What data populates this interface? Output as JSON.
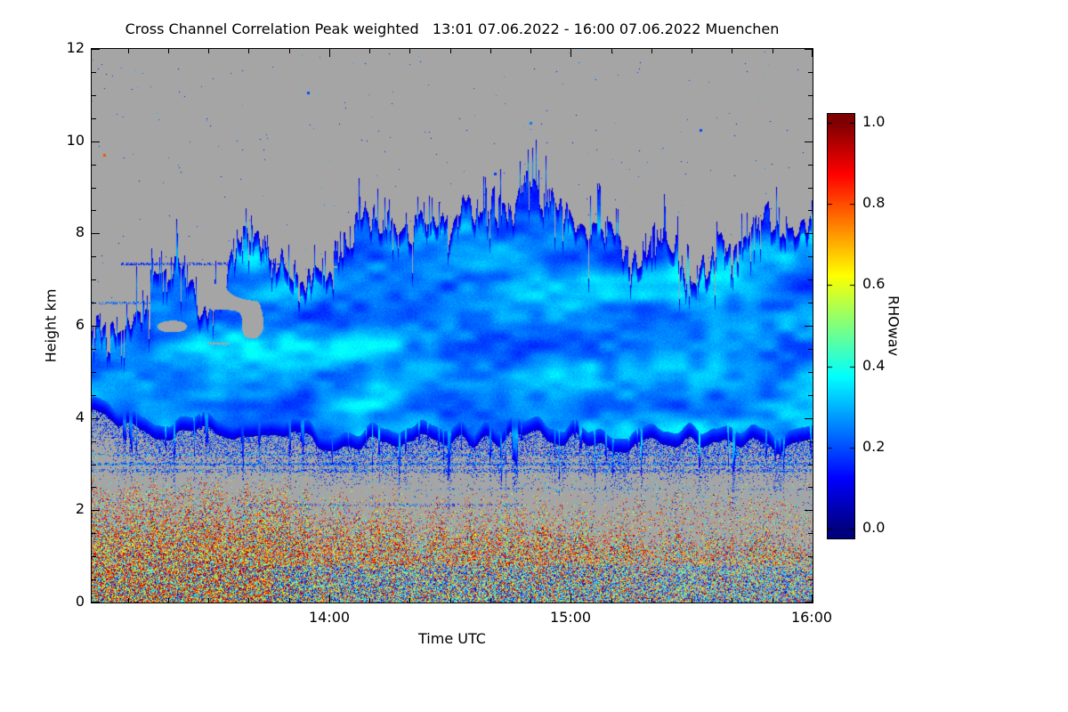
{
  "figure": {
    "title": "Cross Channel Correlation Peak weighted   13:01 07.06.2022 - 16:00 07.06.2022 Muenchen",
    "xlabel": "Time UTC",
    "ylabel": "Height km",
    "colorbar_label": "RHOwav"
  },
  "chart_data": {
    "type": "heatmap",
    "title": "Cross Channel Correlation Peak weighted 13:01 07.06.2022 - 16:00 07.06.2022 Muenchen",
    "xlabel": "Time UTC",
    "ylabel": "Height km",
    "x_start": "13:01",
    "x_end": "16:00",
    "x_start_min": 781,
    "x_end_min": 960,
    "x_ticks": [
      {
        "label": "14:00",
        "minutes": 840
      },
      {
        "label": "15:00",
        "minutes": 900
      },
      {
        "label": "16:00",
        "minutes": 960
      }
    ],
    "x_minor_step_min": 10,
    "y_min": 0,
    "y_max": 12,
    "y_ticks": [
      0,
      2,
      4,
      6,
      8,
      10,
      12
    ],
    "y_minor_step": 0.5,
    "value_name": "RHOwav",
    "value_range": [
      0,
      1
    ],
    "colormap": "jet",
    "no_data_color": "#a5a5a5",
    "colorbar_ticks": [
      {
        "label": "0.0",
        "value": 0.0
      },
      {
        "label": "0.2",
        "value": 0.2
      },
      {
        "label": "0.4",
        "value": 0.4
      },
      {
        "label": "0.6",
        "value": 0.6
      },
      {
        "label": "0.8",
        "value": 0.8
      },
      {
        "label": "1.0",
        "value": 1.0
      }
    ],
    "layers": {
      "cloud": {
        "description": "Extended cloud layer of low cross-channel correlation (blue, RHOwav ~0.05-0.35) with jagged top edge and ragged base, brighter cyan wisps inside, broken gray holes on the left third between 5.6 and 7.9 km",
        "top_km": [
          6.3,
          5.9,
          6.6,
          7.2,
          6.6,
          7.0,
          8.2,
          7.6,
          7.0,
          7.4,
          8.3,
          8.0,
          8.4,
          8.3,
          8.8,
          8.6,
          8.8,
          9.0,
          8.7,
          8.3,
          7.7,
          8.0,
          7.4,
          7.2,
          7.7,
          8.3,
          8.0,
          8.6
        ],
        "base_km": [
          4.2,
          3.9,
          3.75,
          3.6,
          3.7,
          3.6,
          3.55,
          3.6,
          3.5,
          3.45,
          3.5,
          3.55,
          3.5,
          3.4,
          3.45,
          3.5,
          3.55,
          3.6,
          3.5,
          3.4,
          3.35,
          3.4,
          3.45,
          3.5,
          3.4,
          3.35,
          3.4,
          3.45
        ],
        "value_range": [
          0.05,
          0.35
        ]
      },
      "boundary_layer": {
        "description": "Near-surface aerosol layer of high correlation speckle (red/orange/yellow, RHOwav ~0.5-1.0) mixed with cyan/green and gray gaps; densest and reddest on the left, more yellow-green near the ground toward the right",
        "top_km": [
          1.75,
          1.7,
          1.65,
          1.7,
          1.6,
          1.65,
          1.6,
          1.55,
          1.6,
          1.5,
          1.55,
          1.45,
          1.5,
          1.4,
          1.45,
          1.5,
          1.4,
          1.45,
          1.35,
          1.4,
          1.3,
          1.35,
          1.3,
          1.25,
          1.3,
          1.2,
          1.25,
          1.2
        ],
        "value_range": [
          0.3,
          1.0
        ]
      },
      "speckle_zone": {
        "description": "Sparse mixed-color speckle between boundary layer and cloud base (about 2-3.4 km)",
        "density": 0.05
      },
      "streaks": [
        {
          "h_km": 3.0,
          "t0": 0.0,
          "t1": 1.0,
          "density": 0.5,
          "v_min": 0.12,
          "v_max": 0.35
        },
        {
          "h_km": 2.85,
          "t0": 0.0,
          "t1": 1.0,
          "density": 0.28,
          "v_min": 0.1,
          "v_max": 0.3
        },
        {
          "h_km": 3.2,
          "t0": 0.0,
          "t1": 1.0,
          "density": 0.3,
          "v_min": 0.12,
          "v_max": 0.4
        },
        {
          "h_km": 2.1,
          "t0": 0.2,
          "t1": 0.6,
          "density": 0.22,
          "v_min": 0.1,
          "v_max": 0.3
        },
        {
          "h_km": 2.45,
          "t0": 0.45,
          "t1": 1.0,
          "density": 0.15,
          "v_min": 0.1,
          "v_max": 0.35
        },
        {
          "h_km": 7.35,
          "t0": 0.04,
          "t1": 0.27,
          "density": 0.5,
          "v_min": 0.12,
          "v_max": 0.22
        },
        {
          "h_km": 6.5,
          "t0": 0.0,
          "t1": 0.14,
          "density": 0.4,
          "v_min": 0.15,
          "v_max": 0.3
        }
      ],
      "sky_specks": [
        {
          "t": 0.017,
          "h_km": 9.7,
          "v": 0.8
        },
        {
          "t": 0.3,
          "h_km": 11.05,
          "v": 0.2
        },
        {
          "t": 0.61,
          "h_km": 10.4,
          "v": 0.25
        },
        {
          "t": 0.845,
          "h_km": 10.25,
          "v": 0.2
        },
        {
          "t": 0.56,
          "h_km": 9.3,
          "v": 0.18
        }
      ]
    }
  }
}
